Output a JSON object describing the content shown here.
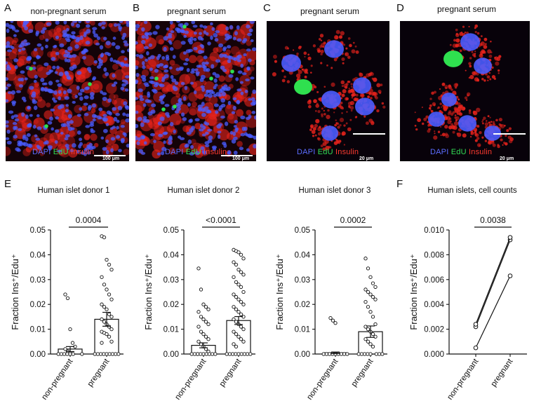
{
  "panels": {
    "A": {
      "letter": "A",
      "title": "non-pregnant serum",
      "scale": "100 μm"
    },
    "B": {
      "letter": "B",
      "title": "pregnant serum",
      "scale": "100 μm"
    },
    "C": {
      "letter": "C",
      "title": "pregnant serum",
      "scale": "20 μm"
    },
    "D": {
      "letter": "D",
      "title": "pregnant serum",
      "scale": "20 μm"
    },
    "E": {
      "letter": "E"
    },
    "F": {
      "letter": "F"
    }
  },
  "legend": {
    "dapi": "DAPI",
    "edu": "EdU",
    "insulin": "Insulin"
  },
  "colors": {
    "dapi": "#4a5cff",
    "edu": "#2fe04f",
    "insulin": "#e8231c"
  },
  "chart_data": [
    {
      "type": "bar",
      "title": "Human islet donor 1",
      "ylabel": "Fraction Ins⁺/Edu⁺",
      "categories": [
        "non-pregnant",
        "pregnant"
      ],
      "values": [
        0.002,
        0.014
      ],
      "errors": [
        0.001,
        0.0028
      ],
      "ylim": [
        0,
        0.05
      ],
      "yticks": [
        "0.00",
        "0.01",
        "0.02",
        "0.03",
        "0.04",
        "0.05"
      ],
      "pvalue": "0.0004",
      "points": [
        [
          0.024,
          0.0225,
          0.01,
          0.0045,
          0.003,
          0.002,
          0.001,
          0.0005,
          0,
          0,
          0,
          0,
          0,
          0,
          0
        ],
        [
          0.0475,
          0.047,
          0.038,
          0.036,
          0.034,
          0.031,
          0.028,
          0.026,
          0.024,
          0.022,
          0.02,
          0.019,
          0.018,
          0.016,
          0.015,
          0.014,
          0.013,
          0.012,
          0.011,
          0.01,
          0.009,
          0.0085,
          0.008,
          0.007,
          0.005,
          0.0045,
          0,
          0,
          0,
          0,
          0,
          0,
          0,
          0,
          0
        ]
      ]
    },
    {
      "type": "bar",
      "title": "Human islet donor 2",
      "ylabel": "Fraction Ins⁺/Edu⁺",
      "categories": [
        "non-pregnant",
        "pregnant"
      ],
      "values": [
        0.0035,
        0.0135
      ],
      "errors": [
        0.001,
        0.0016
      ],
      "ylim": [
        0,
        0.05
      ],
      "yticks": [
        "0.00",
        "0.01",
        "0.02",
        "0.03",
        "0.04",
        "0.05"
      ],
      "pvalue": "<0.0001",
      "points": [
        [
          0.0345,
          0.026,
          0.02,
          0.019,
          0.018,
          0.017,
          0.015,
          0.014,
          0.013,
          0.012,
          0.011,
          0.009,
          0.008,
          0.007,
          0.006,
          0.005,
          0.004,
          0.003,
          0.002,
          0.001,
          0,
          0,
          0,
          0,
          0,
          0,
          0,
          0,
          0,
          0
        ],
        [
          0.042,
          0.0415,
          0.041,
          0.04,
          0.0385,
          0.037,
          0.036,
          0.034,
          0.033,
          0.032,
          0.031,
          0.029,
          0.028,
          0.027,
          0.025,
          0.024,
          0.023,
          0.022,
          0.021,
          0.02,
          0.019,
          0.018,
          0.017,
          0.016,
          0.015,
          0.014,
          0.013,
          0.012,
          0.011,
          0.01,
          0.009,
          0.008,
          0.007,
          0.006,
          0.005,
          0.004,
          0.003,
          0,
          0,
          0,
          0,
          0,
          0,
          0,
          0,
          0
        ]
      ]
    },
    {
      "type": "bar",
      "title": "Human islet donor 3",
      "ylabel": "Fraction Ins⁺/Edu⁺",
      "categories": [
        "non-pregnant",
        "pregnant"
      ],
      "values": [
        0.0005,
        0.009
      ],
      "errors": [
        0.0003,
        0.0023
      ],
      "ylim": [
        0,
        0.05
      ],
      "yticks": [
        "0.00",
        "0.01",
        "0.02",
        "0.03",
        "0.04",
        "0.05"
      ],
      "pvalue": "0.0002",
      "points": [
        [
          0.0145,
          0.0135,
          0.0125,
          0,
          0,
          0,
          0,
          0,
          0,
          0,
          0,
          0
        ],
        [
          0.0385,
          0.0345,
          0.031,
          0.0285,
          0.027,
          0.026,
          0.025,
          0.024,
          0.023,
          0.022,
          0.021,
          0.019,
          0.017,
          0.015,
          0.012,
          0.011,
          0.01,
          0.009,
          0.008,
          0.007,
          0.006,
          0.005,
          0.004,
          0.003,
          0,
          0,
          0,
          0,
          0,
          0,
          0,
          0
        ]
      ]
    },
    {
      "type": "line",
      "title": "Human islets, cell counts",
      "ylabel": "Fraction Ins⁺/Edu⁺",
      "categories": [
        "non-pregnant",
        "pregnant"
      ],
      "ylim": [
        0,
        0.01
      ],
      "yticks": [
        "0.000",
        "0.002",
        "0.004",
        "0.006",
        "0.008",
        "0.010"
      ],
      "pvalue": "0.0038",
      "series": [
        {
          "values": [
            0.0005,
            0.0063
          ]
        },
        {
          "values": [
            0.0022,
            0.0092
          ]
        },
        {
          "values": [
            0.0024,
            0.0094
          ]
        }
      ]
    }
  ]
}
